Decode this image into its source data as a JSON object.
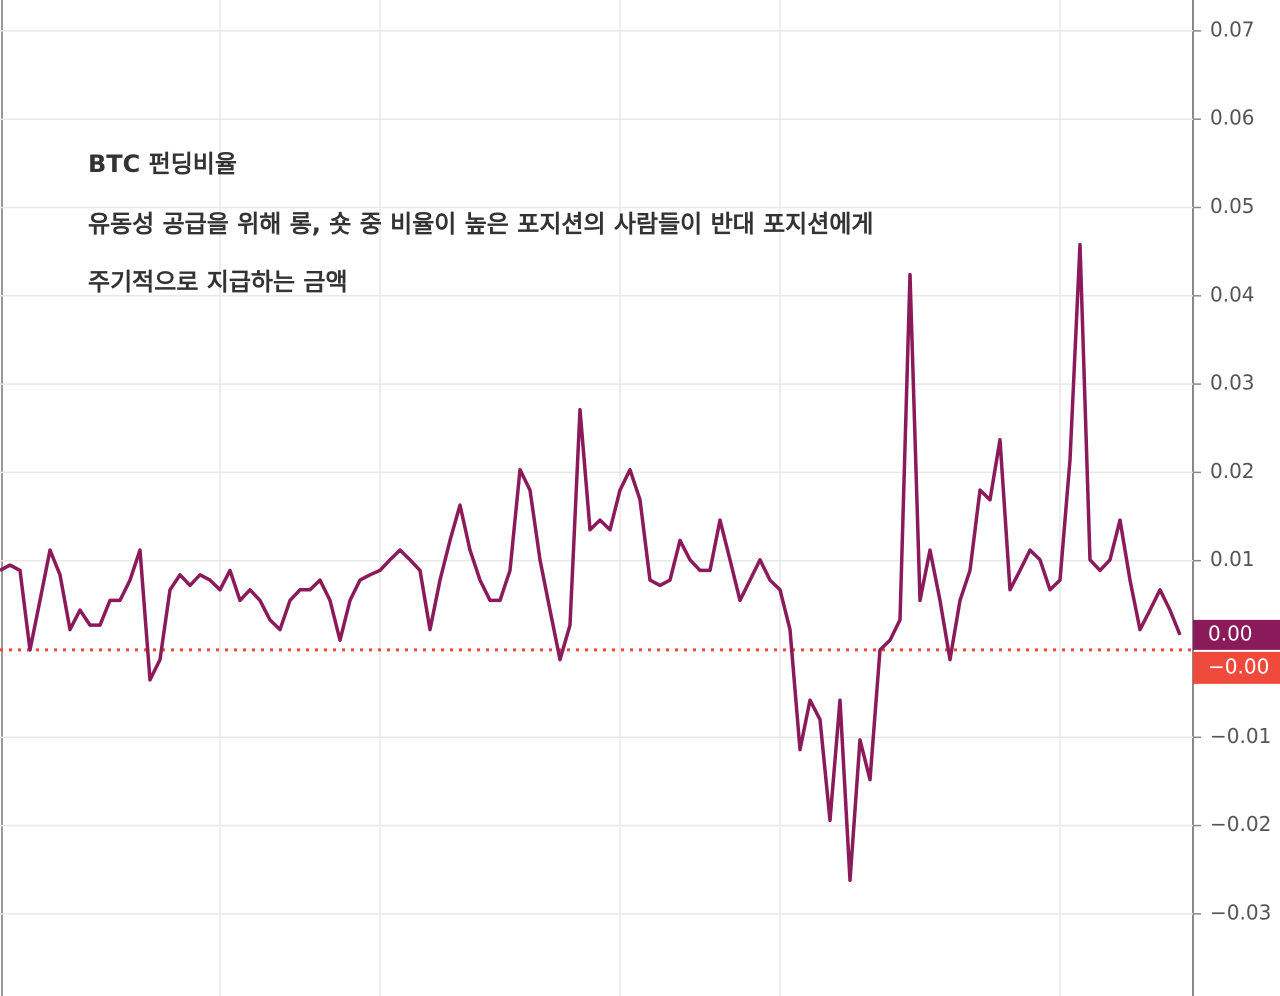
{
  "chart_data": {
    "type": "line",
    "title": "BTC 펀딩비율",
    "annotations": [
      "유동성 공급을 위해 롱, 숏 중 비율이 높은 포지션의 사람들이 반대 포지션에게",
      "주기적으로 지급하는 금액"
    ],
    "series": [
      {
        "color": "#8a1a5a",
        "values": [
          0.0089,
          0.0095,
          0.0089,
          -0.0001,
          0.0055,
          0.0112,
          0.0084,
          0.0022,
          0.0044,
          0.0027,
          0.0027,
          0.0055,
          0.0055,
          0.0078,
          0.0112,
          -0.0035,
          -0.0012,
          0.0067,
          0.0084,
          0.0072,
          0.0084,
          0.0078,
          0.0067,
          0.0089,
          0.0055,
          0.0067,
          0.0055,
          0.0033,
          0.0022,
          0.0055,
          0.0067,
          0.0067,
          0.0078,
          0.0055,
          0.001,
          0.0055,
          0.0078,
          0.0084,
          0.0089,
          0.0101,
          0.0112,
          0.0101,
          0.0089,
          0.0022,
          0.0078,
          0.0123,
          0.0163,
          0.0112,
          0.0078,
          0.0055,
          0.0055,
          0.0089,
          0.0203,
          0.018,
          0.0101,
          0.0044,
          -0.0012,
          0.0027,
          0.0271,
          0.0135,
          0.0146,
          0.0135,
          0.018,
          0.0203,
          0.0169,
          0.0078,
          0.0072,
          0.0078,
          0.0123,
          0.0101,
          0.0089,
          0.0089,
          0.0146,
          0.0101,
          0.0055,
          0.0078,
          0.0101,
          0.0078,
          0.0067,
          0.0022,
          -0.0114,
          -0.0058,
          -0.008,
          -0.0194,
          -0.0058,
          -0.0262,
          -0.0103,
          -0.0148,
          -0.0001,
          0.001,
          0.0033,
          0.0424,
          0.0055,
          0.0112,
          0.0055,
          -0.0012,
          0.0055,
          0.0089,
          0.018,
          0.0169,
          0.0237,
          0.0067,
          0.0089,
          0.0112,
          0.0101,
          0.0067,
          0.0078,
          0.0214,
          0.0458,
          0.0101,
          0.0089,
          0.0101,
          0.0146,
          0.0078,
          0.0022,
          0.0044,
          0.0067,
          0.0044,
          0.0016
        ]
      }
    ],
    "last_label": "0.00",
    "reference_line": {
      "value": -0.0001,
      "label": "−0.00",
      "color": "#f04a3c"
    },
    "ylim": [
      -0.0393,
      0.0735
    ],
    "yticks": [
      {
        "value": -0.03,
        "label": "−0.03"
      },
      {
        "value": -0.02,
        "label": "−0.02"
      },
      {
        "value": -0.01,
        "label": "−0.01"
      },
      0.01,
      0.02,
      0.03,
      0.04,
      0.05,
      0.06,
      0.07
    ],
    "grid": true
  }
}
